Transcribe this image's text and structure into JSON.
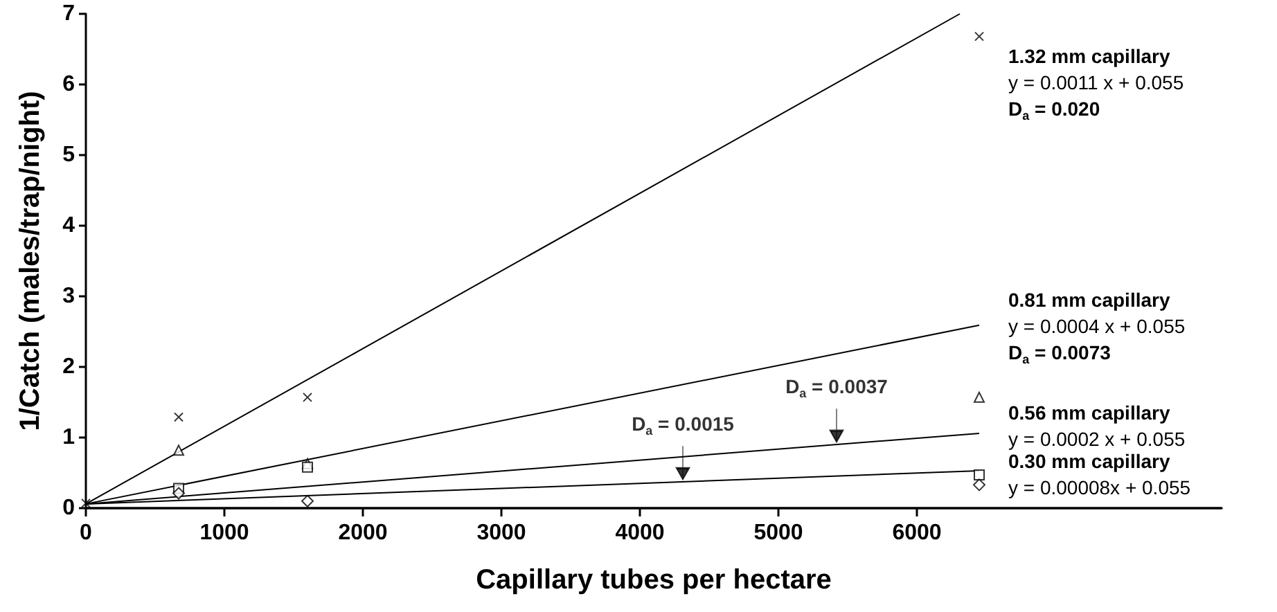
{
  "chart_data": {
    "type": "scatter",
    "xlabel": "Capillary tubes per hectare",
    "ylabel": "1/Catch (males/trap/night)",
    "xlim": [
      0,
      8200
    ],
    "xticks": [
      0,
      1000,
      2000,
      3000,
      4000,
      5000,
      6000
    ],
    "ylim": [
      0,
      7
    ],
    "yticks": [
      0,
      1,
      2,
      3,
      4,
      5,
      6,
      7
    ],
    "grid": false,
    "series": [
      {
        "marker": "cross",
        "color": "#000000",
        "x": [
          0,
          670,
          1600,
          6450
        ],
        "values": [
          0.07,
          1.29,
          1.57,
          6.68
        ]
      },
      {
        "marker": "triangle",
        "color": "#000000",
        "x": [
          670,
          1600,
          6450
        ],
        "values": [
          0.82,
          0.63,
          1.57
        ]
      },
      {
        "marker": "square",
        "color": "#000000",
        "x": [
          670,
          1600,
          6450
        ],
        "values": [
          0.28,
          0.58,
          0.47
        ]
      },
      {
        "marker": "diamond",
        "color": "#000000",
        "x": [
          670,
          1600,
          6450
        ],
        "values": [
          0.21,
          0.1,
          0.33
        ]
      },
      {
        "type": "line",
        "marker": "none",
        "color": "#000000",
        "x": [
          0,
          6310
        ],
        "values": [
          0.06,
          7
        ]
      },
      {
        "type": "line",
        "marker": "none",
        "color": "#000000",
        "x": [
          0,
          6450
        ],
        "values": [
          0.06,
          2.59
        ]
      },
      {
        "type": "line",
        "marker": "none",
        "color": "#000000",
        "x": [
          0,
          6450
        ],
        "values": [
          0.06,
          1.06
        ]
      },
      {
        "type": "line",
        "marker": "none",
        "color": "#000000",
        "x": [
          0,
          6450
        ],
        "values": [
          0.06,
          0.53
        ]
      }
    ],
    "annotations": [
      "1.32 mm capillary\ny = 0.0011 x + 0.055\nD$_{a}$ = 0.020",
      "0.81 mm capillary\ny = 0.0004 x + 0.055\nD$_{a}$ = 0.0073",
      "0.56 mm capillary\ny = 0.0002 x + 0.055",
      "0.30 mm capillary\ny = 0.00008x + 0.055",
      {
        "text": "D$_{a}$ = 0.0015",
        "x": 4310,
        "y": 0.37
      },
      {
        "text": "D$_{a}$ = 0.0037",
        "x": 5420,
        "y": 0.9
      }
    ]
  }
}
